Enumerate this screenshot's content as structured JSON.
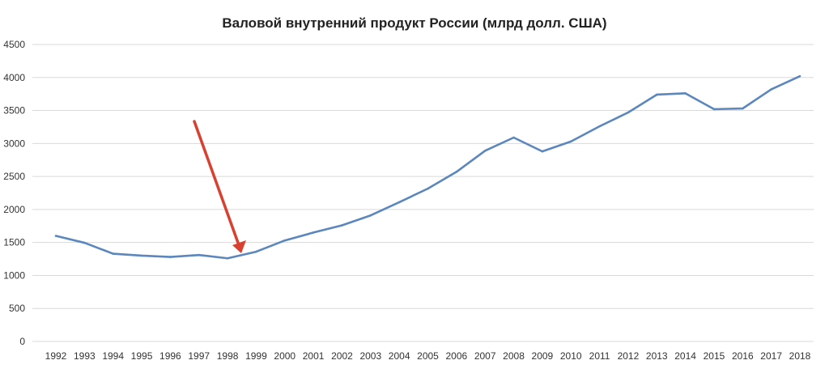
{
  "chart_data": {
    "type": "line",
    "title": "Валовой внутренний продукт России (млрд долл. США)",
    "xlabel": "",
    "ylabel": "",
    "ylim": [
      0,
      4500
    ],
    "yticks": [
      "0",
      "500",
      "1000",
      "1500",
      "2000",
      "2500",
      "3000",
      "3500",
      "4000",
      "4500"
    ],
    "grid": true,
    "categories": [
      "1992",
      "1993",
      "1994",
      "1995",
      "1996",
      "1997",
      "1998",
      "1999",
      "2000",
      "2001",
      "2002",
      "2003",
      "2004",
      "2005",
      "2006",
      "2007",
      "2008",
      "2009",
      "2010",
      "2011",
      "2012",
      "2013",
      "2014",
      "2015",
      "2016",
      "2017",
      "2018"
    ],
    "series": [
      {
        "values": [
          1600,
          1495,
          1330,
          1300,
          1280,
          1310,
          1260,
          1360,
          1530,
          1650,
          1760,
          1910,
          2110,
          2316,
          2570,
          2890,
          3090,
          2880,
          3030,
          3260,
          3470,
          3740,
          3760,
          3520,
          3530,
          3820,
          4020
        ],
        "color": "#5b87bd"
      }
    ],
    "annotations": [
      {
        "type": "arrow",
        "points_to": "1998",
        "color": "#d9402f"
      }
    ]
  }
}
